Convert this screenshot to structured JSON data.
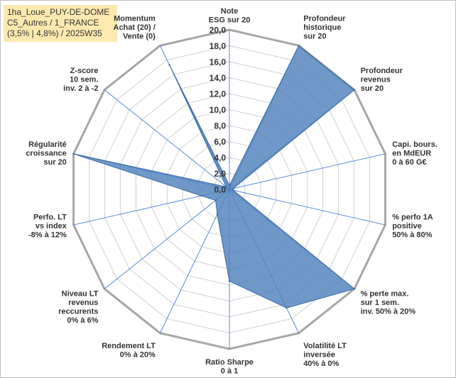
{
  "info": {
    "line1": "1ha_Loue_PUY-DE-DOME",
    "line2": "C5_Autres / 1_FRANCE",
    "line3": "(3,5% | 4,8%) / 2025W35"
  },
  "chart_data": {
    "type": "radar",
    "rmax": 20,
    "tick_step": 2,
    "tick_labels": [
      "0,0",
      "2,0",
      "4,0",
      "6,0",
      "8,0",
      "10,0",
      "12,0",
      "14,0",
      "16,0",
      "18,0",
      "20,0"
    ],
    "grid": true,
    "axes": [
      [
        "Note",
        "ESG sur 20"
      ],
      [
        "Profondeur",
        "historique",
        "sur 20"
      ],
      [
        "Profondeur",
        "revenus",
        "sur 20"
      ],
      [
        "Capi. bours.",
        "en MdEUR",
        "0 à 60 G€"
      ],
      [
        "% perfo 1A",
        "positive",
        "50% à 80%"
      ],
      [
        "% perte max.",
        "sur 1 sem.",
        "inv. 50% à 20%"
      ],
      [
        "Volatilité LT",
        "inversée",
        "40% à 0%"
      ],
      [
        "Ratio Sharpe",
        "0 à 1"
      ],
      [
        "Rendement LT",
        "0% à 20%"
      ],
      [
        "Niveau LT",
        "revenus",
        "reccurents",
        "0% à 6%"
      ],
      [
        "Perfo. LT",
        "vs index",
        "-8% à 12%"
      ],
      [
        "Régularité",
        "croissance",
        "sur 20"
      ],
      [
        "Z-score",
        "10 sem.",
        "inv. 2 à -2"
      ],
      [
        "Momentum",
        "Achat (20) /",
        "Vente (0)"
      ]
    ],
    "values": [
      0.5,
      20,
      20,
      0.5,
      0.5,
      20,
      16.5,
      11.5,
      3.5,
      2.2,
      3.6,
      20,
      0.5,
      17.3
    ],
    "series_color": "#4f81bd",
    "series_fill_opacity": 0.82
  }
}
